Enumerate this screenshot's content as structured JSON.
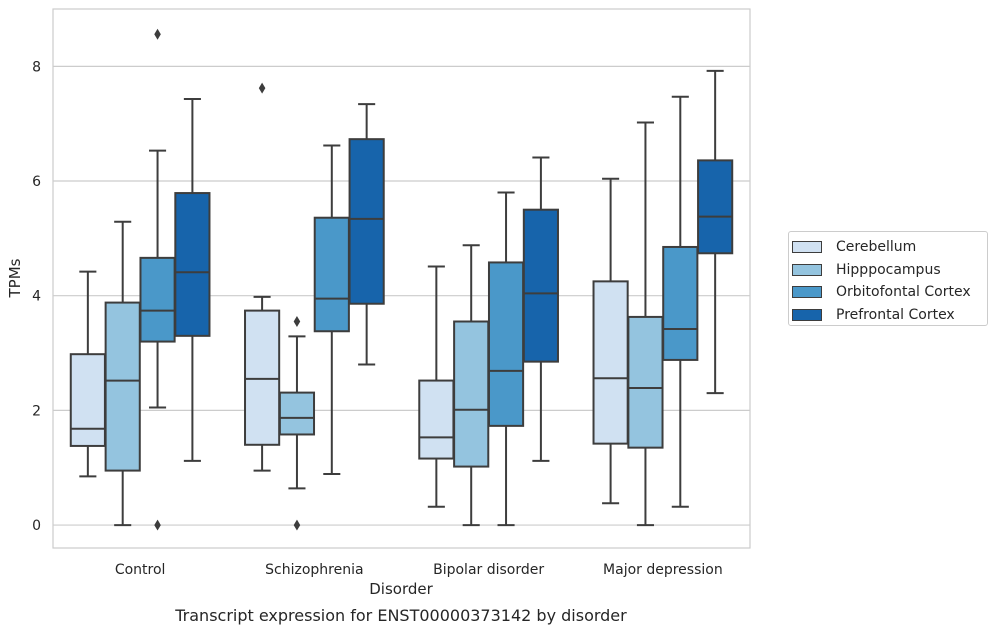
{
  "chart_data": {
    "type": "boxplot",
    "title": "Transcript expression for ENST00000373142 by disorder",
    "xlabel": "Disorder",
    "ylabel": "TPMs",
    "ylim": [
      -0.4,
      9.0
    ],
    "yticks": [
      0,
      2,
      4,
      6,
      8
    ],
    "grid": "horizontal",
    "legend_position": "right",
    "categories": [
      "Control",
      "Schizophrenia",
      "Bipolar disorder",
      "Major depression"
    ],
    "series": [
      {
        "name": "Cerebellum",
        "color": "#d0e1f2",
        "boxes": [
          {
            "whislo": 0.85,
            "q1": 1.38,
            "med": 1.68,
            "q3": 2.98,
            "whishi": 4.42,
            "fliers": []
          },
          {
            "whislo": 0.95,
            "q1": 1.4,
            "med": 2.55,
            "q3": 3.74,
            "whishi": 3.98,
            "fliers": [
              7.62
            ]
          },
          {
            "whislo": 0.32,
            "q1": 1.16,
            "med": 1.53,
            "q3": 2.52,
            "whishi": 4.51,
            "fliers": []
          },
          {
            "whislo": 0.38,
            "q1": 1.42,
            "med": 2.56,
            "q3": 4.25,
            "whishi": 6.04,
            "fliers": []
          }
        ]
      },
      {
        "name": "Hipppocampus",
        "color": "#94c4df",
        "boxes": [
          {
            "whislo": 0.0,
            "q1": 0.95,
            "med": 2.52,
            "q3": 3.88,
            "whishi": 5.29,
            "fliers": []
          },
          {
            "whislo": 0.64,
            "q1": 1.58,
            "med": 1.87,
            "q3": 2.31,
            "whishi": 3.29,
            "fliers": [
              3.55,
              0.0
            ]
          },
          {
            "whislo": 0.0,
            "q1": 1.02,
            "med": 2.01,
            "q3": 3.55,
            "whishi": 4.88,
            "fliers": []
          },
          {
            "whislo": 0.0,
            "q1": 1.35,
            "med": 2.39,
            "q3": 3.63,
            "whishi": 7.02,
            "fliers": []
          }
        ]
      },
      {
        "name": "Orbitofontal Cortex",
        "color": "#4a98c9",
        "boxes": [
          {
            "whislo": 2.05,
            "q1": 3.2,
            "med": 3.74,
            "q3": 4.66,
            "whishi": 6.53,
            "fliers": [
              8.56,
              0.0
            ]
          },
          {
            "whislo": 0.89,
            "q1": 3.38,
            "med": 3.95,
            "q3": 5.36,
            "whishi": 6.62,
            "fliers": []
          },
          {
            "whislo": 0.0,
            "q1": 1.73,
            "med": 2.69,
            "q3": 4.58,
            "whishi": 5.8,
            "fliers": []
          },
          {
            "whislo": 0.32,
            "q1": 2.88,
            "med": 3.42,
            "q3": 4.85,
            "whishi": 7.47,
            "fliers": []
          }
        ]
      },
      {
        "name": "Prefrontal Cortex",
        "color": "#1764ab",
        "boxes": [
          {
            "whislo": 1.12,
            "q1": 3.3,
            "med": 4.41,
            "q3": 5.79,
            "whishi": 7.43,
            "fliers": []
          },
          {
            "whislo": 2.8,
            "q1": 3.86,
            "med": 5.34,
            "q3": 6.73,
            "whishi": 7.34,
            "fliers": []
          },
          {
            "whislo": 1.12,
            "q1": 2.85,
            "med": 4.04,
            "q3": 5.5,
            "whishi": 6.41,
            "fliers": []
          },
          {
            "whislo": 2.3,
            "q1": 4.74,
            "med": 5.38,
            "q3": 6.36,
            "whishi": 7.92,
            "fliers": []
          }
        ]
      }
    ]
  }
}
